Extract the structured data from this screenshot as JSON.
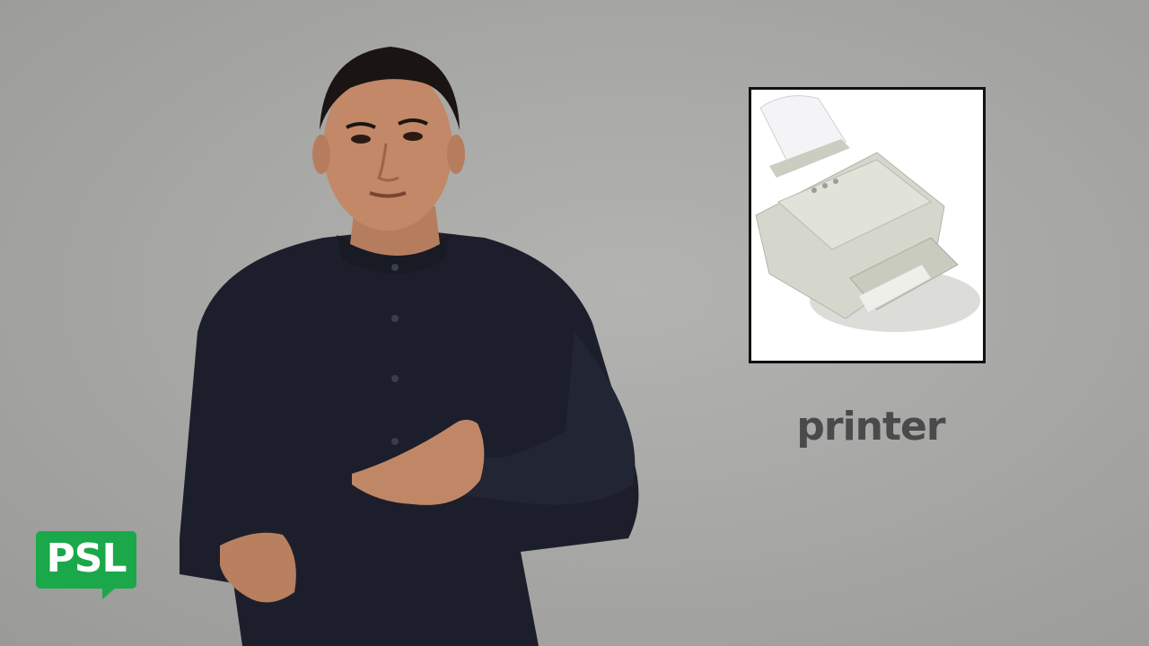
{
  "word": {
    "label": "printer"
  },
  "picture": {
    "subject": "printer-illustration"
  },
  "logo": {
    "text": "PSL",
    "color": "#1aa84a"
  },
  "signer": {
    "subject": "person-signing"
  },
  "colors": {
    "background": "#a8a8a6",
    "label_text": "#4a4a4a",
    "card_border": "#111111"
  }
}
